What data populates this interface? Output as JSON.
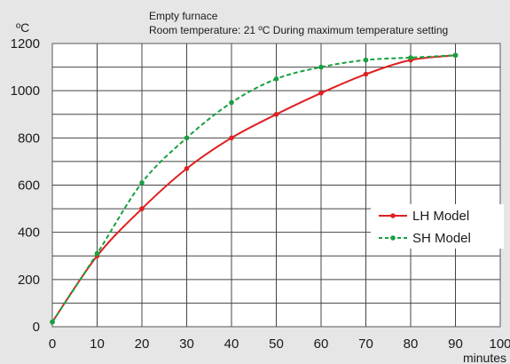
{
  "chart_data": {
    "type": "line",
    "annotations": [
      "Empty furnace",
      "Room temperature: 21 ºC  During maximum temperature setting"
    ],
    "y_unit": "ºC",
    "x_unit": "minutes",
    "xlim": [
      0,
      100
    ],
    "ylim": [
      0,
      1200
    ],
    "x_ticks": [
      "0",
      "10",
      "20",
      "30",
      "40",
      "50",
      "60",
      "70",
      "80",
      "90",
      "100"
    ],
    "y_ticks": [
      "0",
      "200",
      "400",
      "600",
      "800",
      "1000",
      "1200"
    ],
    "grid": true,
    "legend_position": "right",
    "series": [
      {
        "name": "LH Model",
        "color": "#e02020",
        "style": "solid",
        "points": [
          [
            0,
            20
          ],
          [
            10,
            300
          ],
          [
            20,
            500
          ],
          [
            30,
            670
          ],
          [
            40,
            800
          ],
          [
            50,
            900
          ],
          [
            60,
            990
          ],
          [
            70,
            1070
          ],
          [
            80,
            1130
          ],
          [
            90,
            1150
          ]
        ]
      },
      {
        "name": "SH Model",
        "color": "#18a040",
        "style": "dashed",
        "points": [
          [
            0,
            20
          ],
          [
            10,
            310
          ],
          [
            20,
            610
          ],
          [
            30,
            800
          ],
          [
            40,
            950
          ],
          [
            50,
            1050
          ],
          [
            60,
            1100
          ],
          [
            70,
            1130
          ],
          [
            80,
            1140
          ],
          [
            90,
            1150
          ]
        ]
      }
    ]
  }
}
